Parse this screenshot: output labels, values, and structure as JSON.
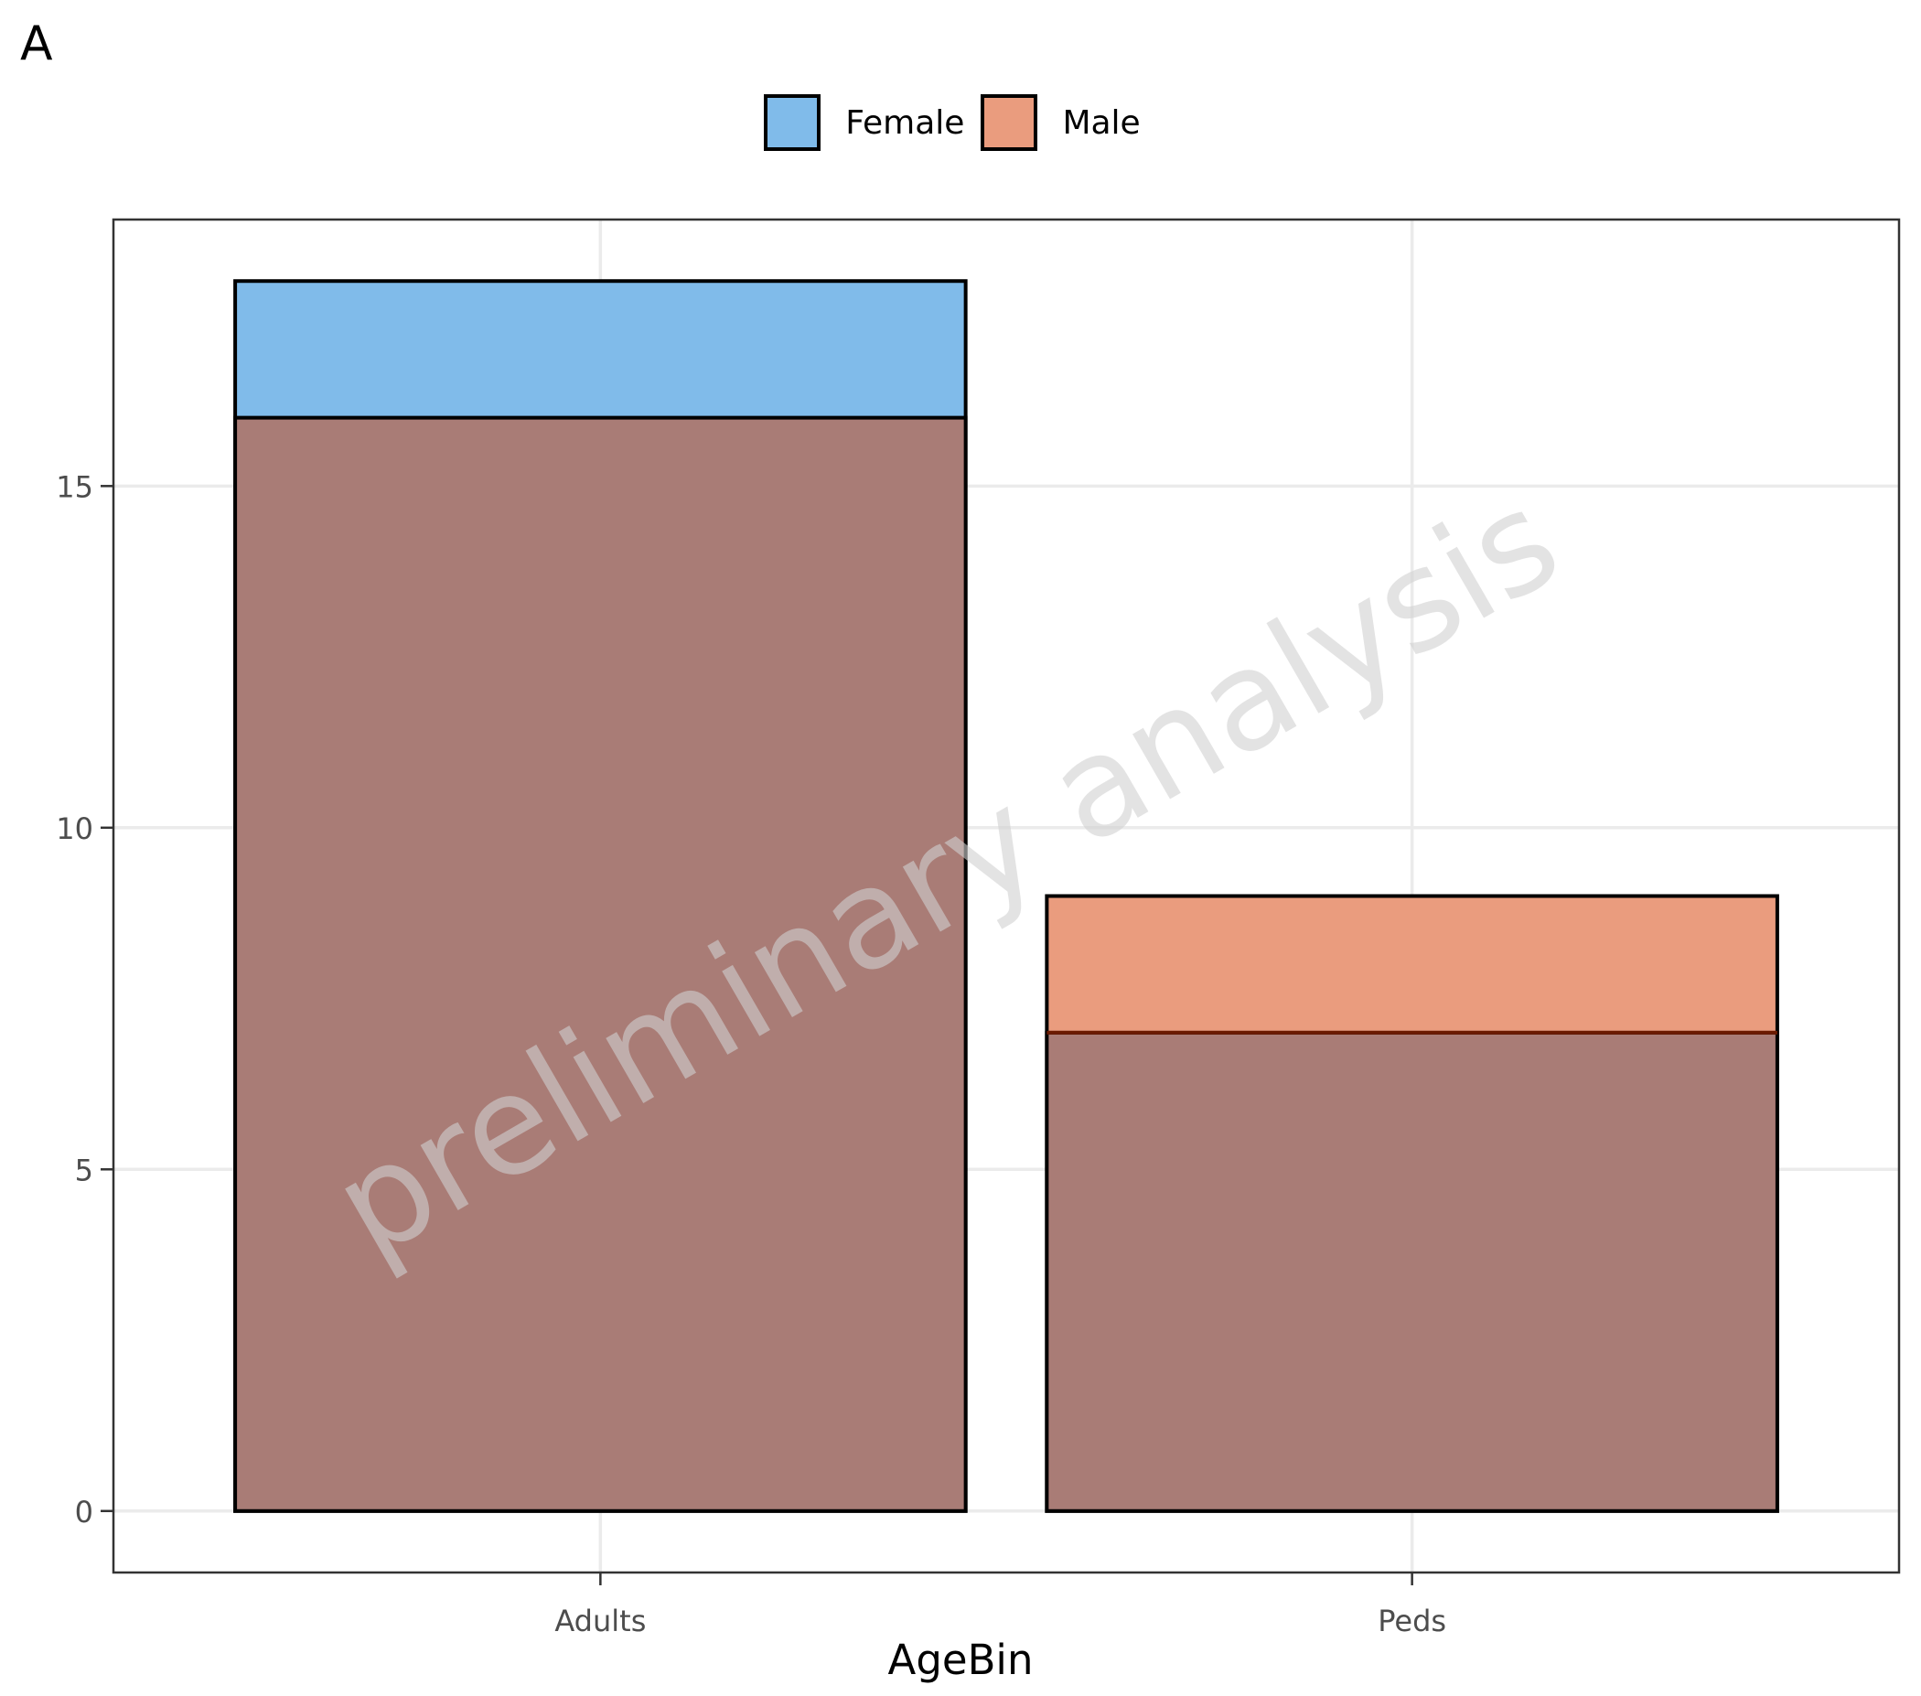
{
  "panel_tag": "A",
  "legend": {
    "items": [
      {
        "label": "Female",
        "color": "#80BBEA"
      },
      {
        "label": "Male",
        "color": "#EA9C7E"
      }
    ]
  },
  "watermark": "preliminary analysis",
  "colors": {
    "female": "#80BBEA",
    "male": "#EA9C7E",
    "overlap": "#A97C76",
    "grid": "#EBEBEB",
    "panel_border": "#333333",
    "tick_label": "#4D4D4D",
    "male_outline": "#6B1A00"
  },
  "chart_data": {
    "type": "bar",
    "categories": [
      "Adults",
      "Peds"
    ],
    "series": [
      {
        "name": "Female",
        "values": [
          18,
          7
        ]
      },
      {
        "name": "Male",
        "values": [
          16,
          9
        ]
      }
    ],
    "bar_mode": "overlay",
    "title": "",
    "xlabel": "AgeBin",
    "ylabel": "",
    "ylim": [
      -0.9,
      18.9
    ],
    "yticks": [
      0,
      5,
      10,
      15
    ],
    "ytick_labels": [
      "0",
      "5",
      "10",
      "15"
    ],
    "grid": true,
    "legend_position": "top"
  }
}
